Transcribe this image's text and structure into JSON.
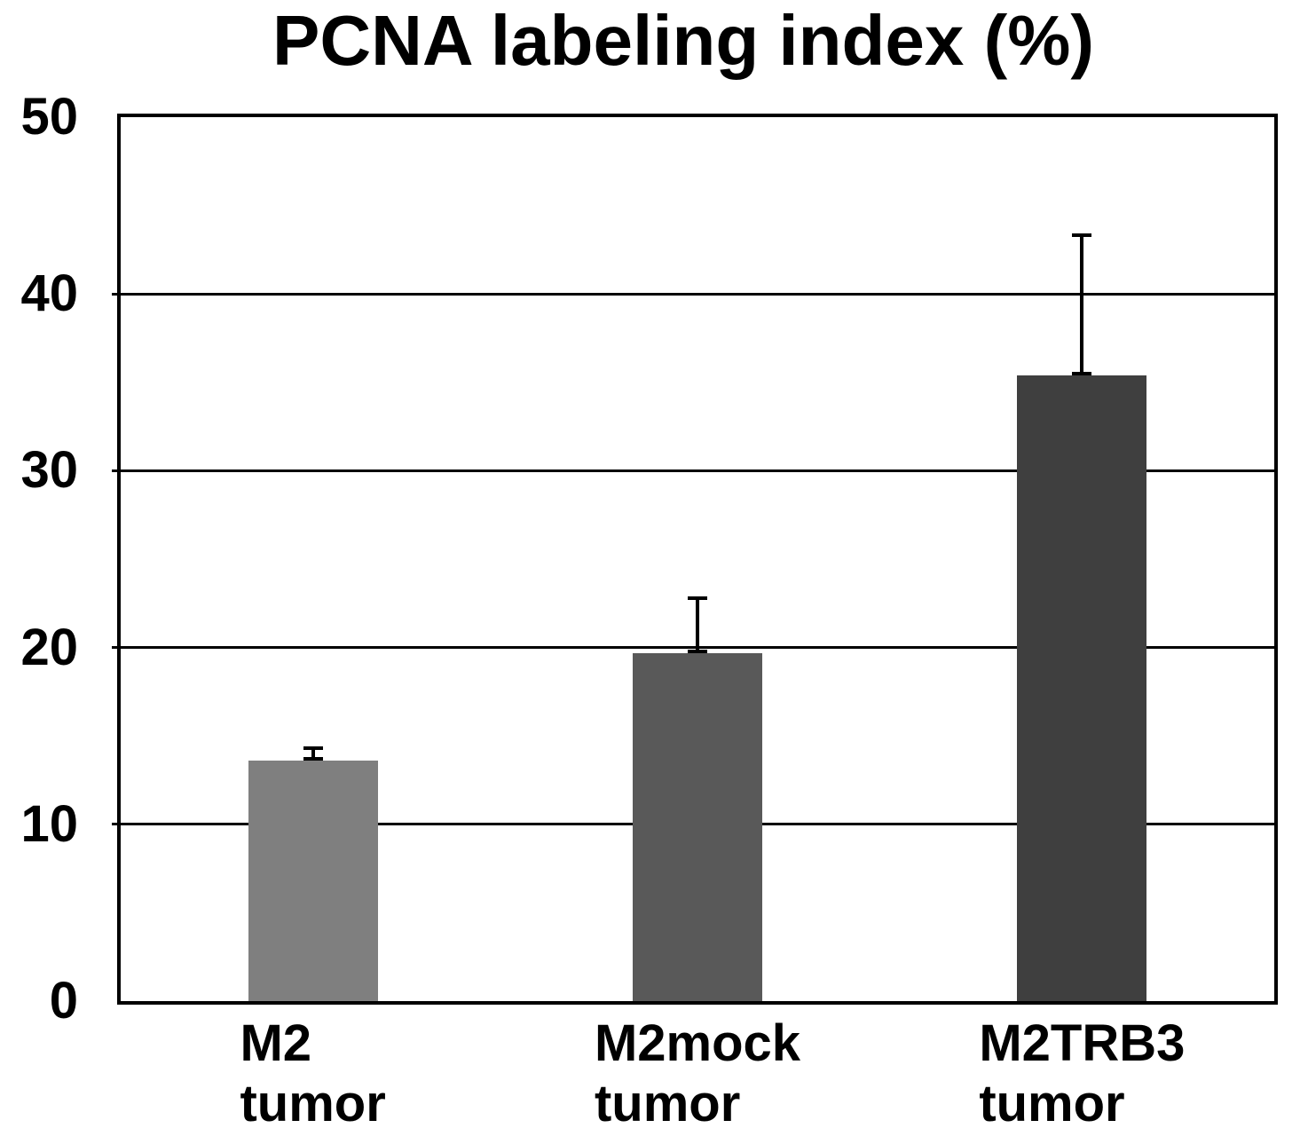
{
  "chart_data": {
    "type": "bar",
    "title": "PCNA labeling index (%)",
    "categories": [
      "M2 tumor",
      "M2mock tumor",
      "M2TRB3 tumor"
    ],
    "category_lines": [
      [
        "M2",
        "tumor"
      ],
      [
        "M2mock",
        "tumor"
      ],
      [
        "M2TRB3",
        "tumor"
      ]
    ],
    "values": [
      13.6,
      19.7,
      35.4
    ],
    "errors_plus": [
      0.8,
      3.2,
      8.0
    ],
    "bar_colors": [
      "#7F7F7F",
      "#595959",
      "#3F3F3F"
    ],
    "xlabel": "",
    "ylabel": "",
    "ylim": [
      0,
      50
    ],
    "yticks": [
      0,
      10,
      20,
      30,
      40,
      50
    ],
    "grid": true,
    "legend_position": "none",
    "axis_color": "#000000",
    "background_color": "#FFFFFF"
  }
}
